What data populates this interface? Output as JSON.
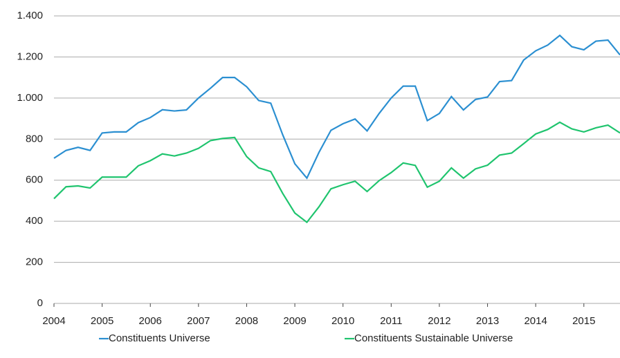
{
  "chart_data": {
    "type": "line",
    "x": [
      2004,
      2004.25,
      2004.5,
      2004.75,
      2005,
      2005.25,
      2005.5,
      2005.75,
      2006,
      2006.25,
      2006.5,
      2006.75,
      2007,
      2007.25,
      2007.5,
      2007.75,
      2008,
      2008.25,
      2008.5,
      2008.75,
      2009,
      2009.25,
      2009.5,
      2009.75,
      2010,
      2010.25,
      2010.5,
      2010.75,
      2011,
      2011.25,
      2011.5,
      2011.75,
      2012,
      2012.25,
      2012.5,
      2012.75,
      2013,
      2013.25,
      2013.5,
      2013.75,
      2014,
      2014.25,
      2014.5,
      2014.75,
      2015,
      2015.25,
      2015.5,
      2015.75
    ],
    "series": [
      {
        "name": "Constituents Universe",
        "color": "#2b8fd1",
        "values": [
          707,
          745,
          760,
          745,
          830,
          835,
          835,
          880,
          905,
          943,
          937,
          942,
          1000,
          1048,
          1100,
          1100,
          1055,
          988,
          975,
          820,
          680,
          610,
          735,
          843,
          875,
          898,
          840,
          925,
          1000,
          1058,
          1058,
          890,
          925,
          1007,
          942,
          993,
          1005,
          1080,
          1085,
          1185,
          1230,
          1258,
          1305,
          1250,
          1235,
          1277,
          1282,
          1210
        ]
      },
      {
        "name": "Constituents Sustainable Universe",
        "color": "#1fc46e",
        "values": [
          510,
          568,
          572,
          562,
          615,
          615,
          615,
          670,
          695,
          728,
          718,
          732,
          755,
          793,
          803,
          808,
          715,
          660,
          642,
          535,
          440,
          395,
          470,
          558,
          578,
          595,
          545,
          598,
          637,
          684,
          672,
          566,
          595,
          660,
          610,
          655,
          673,
          722,
          732,
          778,
          825,
          847,
          882,
          850,
          835,
          855,
          868,
          830
        ]
      }
    ],
    "xlim": [
      2004,
      2015.75
    ],
    "xticks": [
      2004,
      2005,
      2006,
      2007,
      2008,
      2009,
      2010,
      2011,
      2012,
      2013,
      2014,
      2015
    ],
    "ylim": [
      0,
      1400
    ],
    "yticks": [
      0,
      200,
      400,
      600,
      800,
      {
        "value": 1000,
        "label": "1.000"
      },
      {
        "value": 1200,
        "label": "1.200"
      },
      {
        "value": 1400,
        "label": "1.400"
      }
    ],
    "grid": true,
    "legend": "bottom"
  }
}
